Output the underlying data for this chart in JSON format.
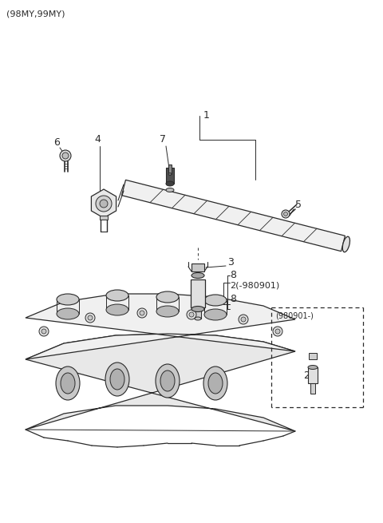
{
  "bg_color": "#ffffff",
  "line_color": "#2a2a2a",
  "header_text": "(98MY,99MY)",
  "figsize": [
    4.8,
    6.55
  ],
  "dpi": 100
}
